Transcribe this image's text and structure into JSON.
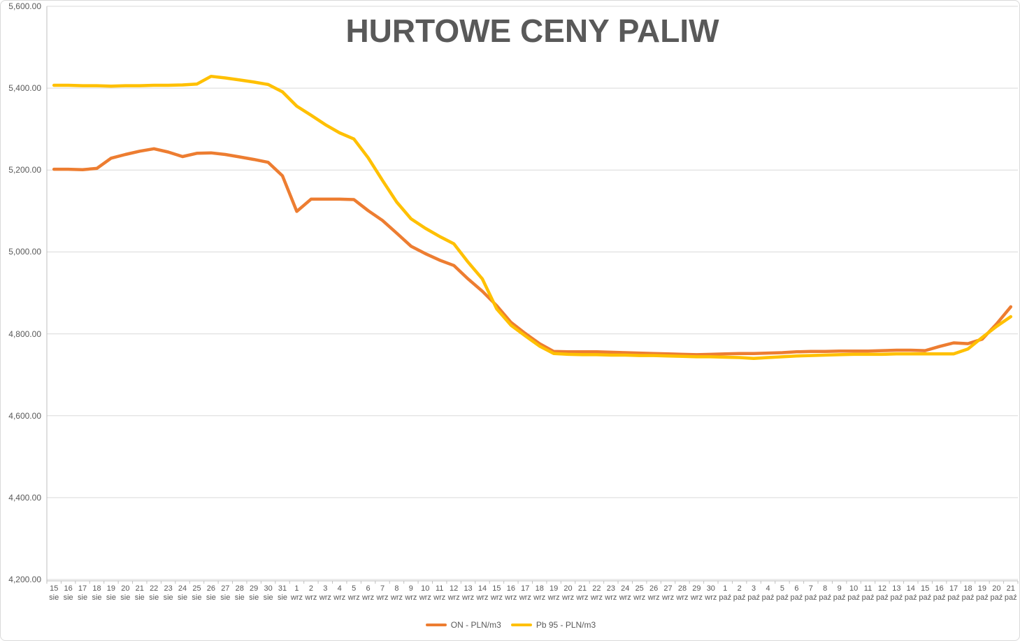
{
  "chart_data": {
    "type": "line",
    "title": "HURTOWE CENY PALIW",
    "xlabel": "",
    "ylabel": "",
    "ylim": [
      4200,
      5600
    ],
    "grid": true,
    "legend_position": "bottom",
    "y_ticks": [
      {
        "value": 5600,
        "label": "5,600.00"
      },
      {
        "value": 5400,
        "label": "5,400.00"
      },
      {
        "value": 5200,
        "label": "5,200.00"
      },
      {
        "value": 5000,
        "label": "5,000.00"
      },
      {
        "value": 4800,
        "label": "4,800.00"
      },
      {
        "value": 4600,
        "label": "4,600.00"
      },
      {
        "value": 4400,
        "label": "4,400.00"
      },
      {
        "value": 4200,
        "label": "4,200.00"
      }
    ],
    "categories": [
      "15 sie",
      "16 sie",
      "17 sie",
      "18 sie",
      "19 sie",
      "20 sie",
      "21 sie",
      "22 sie",
      "23 sie",
      "24 sie",
      "25 sie",
      "26 sie",
      "27 sie",
      "28 sie",
      "29 sie",
      "30 sie",
      "31 sie",
      "1 wrz",
      "2 wrz",
      "3 wrz",
      "4 wrz",
      "5 wrz",
      "6 wrz",
      "7 wrz",
      "8 wrz",
      "9 wrz",
      "10 wrz",
      "11 wrz",
      "12 wrz",
      "13 wrz",
      "14 wrz",
      "15 wrz",
      "16 wrz",
      "17 wrz",
      "18 wrz",
      "19 wrz",
      "20 wrz",
      "21 wrz",
      "22 wrz",
      "23 wrz",
      "24 wrz",
      "25 wrz",
      "26 wrz",
      "27 wrz",
      "28 wrz",
      "29 wrz",
      "30 wrz",
      "1 paź",
      "2 paź",
      "3 paź",
      "4 paź",
      "5 paź",
      "6 paź",
      "7 paź",
      "8 paź",
      "9 paź",
      "10 paź",
      "11 paź",
      "12 paź",
      "13 paź",
      "14 paź",
      "15 paź",
      "16 paź",
      "17 paź",
      "18 paź",
      "19 paź",
      "20 paź",
      "21 paź"
    ],
    "series": [
      {
        "name": "ON - PLN/m3",
        "color": "#ED7D31",
        "values": [
          5202,
          5202,
          5201,
          5204,
          5229,
          5238,
          5246,
          5252,
          5244,
          5233,
          5241,
          5242,
          5238,
          5232,
          5226,
          5219,
          5186,
          5099,
          5129,
          5129,
          5129,
          5128,
          5101,
          5077,
          5046,
          5014,
          4996,
          4980,
          4967,
          4934,
          4904,
          4869,
          4828,
          4801,
          4776,
          4757,
          4756,
          4756,
          4756,
          4755,
          4754,
          4753,
          4752,
          4751,
          4750,
          4749,
          4750,
          4751,
          4752,
          4752,
          4753,
          4754,
          4756,
          4757,
          4757,
          4758,
          4758,
          4758,
          4759,
          4760,
          4760,
          4759,
          4769,
          4778,
          4776,
          4787,
          4824,
          4866
        ]
      },
      {
        "name": "Pb 95 - PLN/m3",
        "color": "#FFC000",
        "values": [
          5407,
          5407,
          5406,
          5406,
          5405,
          5406,
          5406,
          5407,
          5407,
          5408,
          5410,
          5429,
          5425,
          5420,
          5415,
          5409,
          5391,
          5356,
          5334,
          5311,
          5291,
          5276,
          5230,
          5175,
          5122,
          5081,
          5058,
          5038,
          5020,
          4975,
          4934,
          4861,
          4821,
          4795,
          4770,
          4752,
          4750,
          4749,
          4749,
          4748,
          4748,
          4747,
          4747,
          4746,
          4745,
          4744,
          4744,
          4743,
          4742,
          4740,
          4742,
          4744,
          4746,
          4747,
          4748,
          4749,
          4750,
          4750,
          4750,
          4751,
          4751,
          4751,
          4751,
          4751,
          4763,
          4791,
          4818,
          4842
        ]
      }
    ],
    "colors": {
      "gridline": "#D9D9D9",
      "axis_line": "#BFBFBF",
      "text": "#595959",
      "background": "#FFFFFF"
    }
  }
}
